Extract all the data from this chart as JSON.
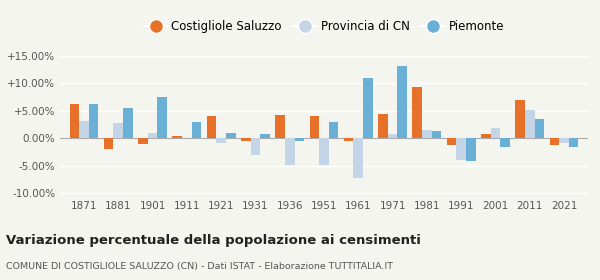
{
  "years": [
    1871,
    1881,
    1901,
    1911,
    1921,
    1931,
    1936,
    1951,
    1961,
    1971,
    1981,
    1991,
    2001,
    2011,
    2021
  ],
  "costigliole": [
    6.3,
    -2.0,
    -1.0,
    0.4,
    4.0,
    -0.5,
    4.2,
    4.0,
    -0.5,
    4.5,
    9.3,
    -1.2,
    0.8,
    7.0,
    -1.2
  ],
  "provincia_cn": [
    3.2,
    2.8,
    1.0,
    0.0,
    -0.8,
    -3.0,
    -4.8,
    -4.8,
    -7.2,
    0.8,
    1.5,
    -4.0,
    1.8,
    5.2,
    -0.8
  ],
  "piemonte": [
    6.2,
    5.5,
    7.5,
    3.0,
    1.0,
    0.7,
    -0.5,
    3.0,
    11.0,
    13.2,
    1.3,
    -4.2,
    -1.5,
    3.5,
    -1.5
  ],
  "costigliole_color": "#e8712a",
  "provincia_color": "#c5d5e8",
  "piemonte_color": "#6aafd6",
  "bar_width": 0.28,
  "ylim": [
    -10.5,
    16.0
  ],
  "yticks": [
    -10.0,
    -5.0,
    0.0,
    5.0,
    10.0,
    15.0
  ],
  "ytick_labels": [
    "-10.00%",
    "-5.00%",
    "0.00%",
    "+5.00%",
    "+10.00%",
    "+15.00%"
  ],
  "title": "Variazione percentuale della popolazione ai censimenti",
  "subtitle": "COMUNE DI COSTIGLIOLE SALUZZO (CN) - Dati ISTAT - Elaborazione TUTTITALIA.IT",
  "legend_labels": [
    "Costigliole Saluzzo",
    "Provincia di CN",
    "Piemonte"
  ],
  "bg_color": "#f5f5f0",
  "grid_color": "#ffffff"
}
